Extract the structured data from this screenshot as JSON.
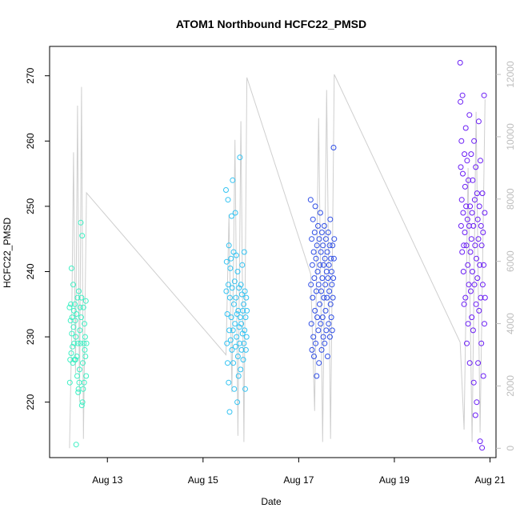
{
  "chart_data": {
    "type": "scatter",
    "title": "ATOM1 Northbound HCFC22_PMSD",
    "xlabel": "Date",
    "ylabel": "HCFC22_PMSD",
    "xlim": [
      "2016-08-11T19:00",
      "2016-08-21T03:00"
    ],
    "ylim": [
      211.5,
      274.5
    ],
    "y2lim": [
      -300,
      12900
    ],
    "x_ticks": [
      {
        "value": "2016-08-13T00:00",
        "label": "Aug 13"
      },
      {
        "value": "2016-08-15T00:00",
        "label": "Aug 15"
      },
      {
        "value": "2016-08-17T00:00",
        "label": "Aug 17"
      },
      {
        "value": "2016-08-19T00:00",
        "label": "Aug 19"
      },
      {
        "value": "2016-08-21T00:00",
        "label": "Aug 21"
      }
    ],
    "y_ticks": [
      {
        "value": 220,
        "label": "220"
      },
      {
        "value": 230,
        "label": "230"
      },
      {
        "value": 240,
        "label": "240"
      },
      {
        "value": 250,
        "label": "250"
      },
      {
        "value": 260,
        "label": "260"
      },
      {
        "value": 270,
        "label": "270"
      }
    ],
    "y2_ticks": [
      {
        "value": 0,
        "label": "0"
      },
      {
        "value": 2000,
        "label": "2000"
      },
      {
        "value": 4000,
        "label": "4000"
      },
      {
        "value": 6000,
        "label": "6000"
      },
      {
        "value": 8000,
        "label": "8000"
      },
      {
        "value": 10000,
        "label": "10000"
      },
      {
        "value": 12000,
        "label": "12000"
      }
    ],
    "grid": false,
    "legend": "none",
    "series": [
      {
        "color": "#3ef0c4",
        "x": [
          "2016-08-12T05:00",
          "2016-08-12T05:10",
          "2016-08-12T05:20",
          "2016-08-12T05:30",
          "2016-08-12T05:40",
          "2016-08-12T05:50",
          "2016-08-12T06:00",
          "2016-08-12T06:10",
          "2016-08-12T06:20",
          "2016-08-12T06:30",
          "2016-08-12T06:40",
          "2016-08-12T06:50",
          "2016-08-12T07:00",
          "2016-08-12T07:10",
          "2016-08-12T07:20",
          "2016-08-12T07:30",
          "2016-08-12T07:40",
          "2016-08-12T07:50",
          "2016-08-12T08:00",
          "2016-08-12T08:10",
          "2016-08-12T08:20",
          "2016-08-12T08:30",
          "2016-08-12T08:40",
          "2016-08-12T08:50",
          "2016-08-12T09:00",
          "2016-08-12T09:10",
          "2016-08-12T09:20",
          "2016-08-12T09:30",
          "2016-08-12T09:40",
          "2016-08-12T09:50",
          "2016-08-12T10:00",
          "2016-08-12T10:10",
          "2016-08-12T10:20",
          "2016-08-12T10:30",
          "2016-08-12T10:40",
          "2016-08-12T10:50",
          "2016-08-12T11:00",
          "2016-08-12T11:10",
          "2016-08-12T11:20",
          "2016-08-12T11:30",
          "2016-08-12T11:40",
          "2016-08-12T11:50",
          "2016-08-12T12:00",
          "2016-08-12T12:10",
          "2016-08-12T12:20",
          "2016-08-12T12:30",
          "2016-08-12T12:40",
          "2016-08-12T12:50",
          "2016-08-12T13:00",
          "2016-08-12T13:10",
          "2016-08-12T13:20",
          "2016-08-12T13:30"
        ],
        "y": [
          234.5,
          223,
          226.5,
          232.5,
          235,
          227.5,
          240.5,
          230.5,
          233,
          228.5,
          226,
          238,
          231.5,
          234,
          229,
          226.5,
          235,
          232.5,
          226.5,
          230,
          213.5,
          233.5,
          227,
          224,
          236,
          229,
          221.5,
          222,
          237,
          223,
          225,
          231,
          234.5,
          229,
          247.5,
          233,
          236,
          219.5,
          245.5,
          220,
          226,
          222,
          234.5,
          229,
          223,
          232,
          228,
          230,
          227,
          235.5,
          224,
          229
        ]
      },
      {
        "color": "#33c3f2",
        "x": [
          "2016-08-15T11:30",
          "2016-08-15T11:40",
          "2016-08-15T11:50",
          "2016-08-15T12:00",
          "2016-08-15T12:10",
          "2016-08-15T12:20",
          "2016-08-15T12:30",
          "2016-08-15T12:40",
          "2016-08-15T12:50",
          "2016-08-15T13:00",
          "2016-08-15T13:10",
          "2016-08-15T13:20",
          "2016-08-15T13:30",
          "2016-08-15T13:40",
          "2016-08-15T13:50",
          "2016-08-15T14:00",
          "2016-08-15T14:10",
          "2016-08-15T14:20",
          "2016-08-15T14:30",
          "2016-08-15T14:40",
          "2016-08-15T14:50",
          "2016-08-15T15:00",
          "2016-08-15T15:10",
          "2016-08-15T15:20",
          "2016-08-15T15:30",
          "2016-08-15T15:40",
          "2016-08-15T15:50",
          "2016-08-15T16:00",
          "2016-08-15T16:10",
          "2016-08-15T16:20",
          "2016-08-15T16:30",
          "2016-08-15T16:40",
          "2016-08-15T16:50",
          "2016-08-15T17:00",
          "2016-08-15T17:10",
          "2016-08-15T17:20",
          "2016-08-15T17:30",
          "2016-08-15T17:40",
          "2016-08-15T17:50",
          "2016-08-15T18:00",
          "2016-08-15T18:10",
          "2016-08-15T18:20",
          "2016-08-15T18:30",
          "2016-08-15T18:40",
          "2016-08-15T18:50",
          "2016-08-15T19:00",
          "2016-08-15T19:10",
          "2016-08-15T19:20",
          "2016-08-15T19:30",
          "2016-08-15T19:40",
          "2016-08-15T19:50",
          "2016-08-15T20:00",
          "2016-08-15T20:10",
          "2016-08-15T20:20",
          "2016-08-15T20:30",
          "2016-08-15T20:40",
          "2016-08-15T20:50",
          "2016-08-15T21:00",
          "2016-08-15T21:10",
          "2016-08-15T21:20",
          "2016-08-15T21:30",
          "2016-08-15T21:40",
          "2016-08-15T21:50",
          "2016-08-15T22:00"
        ],
        "y": [
          252.5,
          237,
          241.5,
          229,
          233.5,
          226,
          251,
          238,
          223,
          244,
          231,
          218.5,
          236,
          240.5,
          229.5,
          242,
          233,
          248.5,
          228,
          237.5,
          254,
          231,
          226,
          243,
          235,
          222,
          238.5,
          232,
          249,
          228.5,
          236,
          242.5,
          230,
          233.5,
          220,
          240,
          227,
          234,
          224,
          237.5,
          231.5,
          229,
          257.5,
          233,
          225,
          238,
          232,
          228,
          236.5,
          241,
          230.5,
          234,
          226.5,
          235,
          229,
          243,
          231,
          237,
          222,
          233,
          228,
          236,
          230,
          234
        ]
      },
      {
        "color": "#2f4ee6",
        "x": [
          "2016-08-17T06:00",
          "2016-08-17T06:10",
          "2016-08-17T06:20",
          "2016-08-17T06:30",
          "2016-08-17T06:40",
          "2016-08-17T06:50",
          "2016-08-17T07:00",
          "2016-08-17T07:10",
          "2016-08-17T07:20",
          "2016-08-17T07:30",
          "2016-08-17T07:40",
          "2016-08-17T07:50",
          "2016-08-17T08:00",
          "2016-08-17T08:10",
          "2016-08-17T08:20",
          "2016-08-17T08:30",
          "2016-08-17T08:40",
          "2016-08-17T08:50",
          "2016-08-17T09:00",
          "2016-08-17T09:10",
          "2016-08-17T09:20",
          "2016-08-17T09:30",
          "2016-08-17T09:40",
          "2016-08-17T09:50",
          "2016-08-17T10:00",
          "2016-08-17T10:10",
          "2016-08-17T10:20",
          "2016-08-17T10:30",
          "2016-08-17T10:40",
          "2016-08-17T10:50",
          "2016-08-17T11:00",
          "2016-08-17T11:10",
          "2016-08-17T11:20",
          "2016-08-17T11:30",
          "2016-08-17T11:40",
          "2016-08-17T11:50",
          "2016-08-17T12:00",
          "2016-08-17T12:10",
          "2016-08-17T12:20",
          "2016-08-17T12:30",
          "2016-08-17T12:40",
          "2016-08-17T12:50",
          "2016-08-17T13:00",
          "2016-08-17T13:10",
          "2016-08-17T13:20",
          "2016-08-17T13:30",
          "2016-08-17T13:40",
          "2016-08-17T13:50",
          "2016-08-17T14:00",
          "2016-08-17T14:10",
          "2016-08-17T14:20",
          "2016-08-17T14:30",
          "2016-08-17T14:40",
          "2016-08-17T14:50",
          "2016-08-17T15:00",
          "2016-08-17T15:10",
          "2016-08-17T15:20",
          "2016-08-17T15:30",
          "2016-08-17T15:40",
          "2016-08-17T15:50",
          "2016-08-17T16:00",
          "2016-08-17T16:10",
          "2016-08-17T16:20",
          "2016-08-17T16:30",
          "2016-08-17T16:40",
          "2016-08-17T16:50",
          "2016-08-17T17:00",
          "2016-08-17T17:10",
          "2016-08-17T17:20",
          "2016-08-17T17:30",
          "2016-08-17T17:40",
          "2016-08-17T17:50"
        ],
        "y": [
          251,
          238,
          232,
          245,
          228,
          241,
          236,
          248,
          230,
          243,
          227,
          239,
          246,
          234,
          250,
          229,
          242,
          237,
          224,
          244,
          233,
          240,
          247,
          231,
          238,
          226,
          245,
          235,
          241,
          249,
          232,
          243,
          237,
          228,
          246,
          239,
          233,
          244,
          230,
          241,
          236,
          247,
          229,
          242,
          238,
          234,
          245,
          231,
          240,
          236,
          243,
          227,
          239,
          246,
          232,
          241,
          237,
          244,
          230,
          248,
          235,
          242,
          233,
          240,
          238,
          231,
          244,
          236,
          239,
          259,
          242,
          245
        ]
      },
      {
        "color": "#6a1df5",
        "x": [
          "2016-08-20T09:00",
          "2016-08-20T09:10",
          "2016-08-20T09:20",
          "2016-08-20T09:30",
          "2016-08-20T09:40",
          "2016-08-20T09:50",
          "2016-08-20T10:00",
          "2016-08-20T10:10",
          "2016-08-20T10:20",
          "2016-08-20T10:30",
          "2016-08-20T10:40",
          "2016-08-20T10:50",
          "2016-08-20T11:00",
          "2016-08-20T11:10",
          "2016-08-20T11:20",
          "2016-08-20T11:30",
          "2016-08-20T11:40",
          "2016-08-20T11:50",
          "2016-08-20T12:00",
          "2016-08-20T12:10",
          "2016-08-20T12:20",
          "2016-08-20T12:30",
          "2016-08-20T12:40",
          "2016-08-20T12:50",
          "2016-08-20T13:00",
          "2016-08-20T13:10",
          "2016-08-20T13:20",
          "2016-08-20T13:30",
          "2016-08-20T13:40",
          "2016-08-20T13:50",
          "2016-08-20T14:00",
          "2016-08-20T14:10",
          "2016-08-20T14:20",
          "2016-08-20T14:30",
          "2016-08-20T14:40",
          "2016-08-20T14:50",
          "2016-08-20T15:00",
          "2016-08-20T15:10",
          "2016-08-20T15:20",
          "2016-08-20T15:30",
          "2016-08-20T15:40",
          "2016-08-20T15:50",
          "2016-08-20T16:00",
          "2016-08-20T16:10",
          "2016-08-20T16:20",
          "2016-08-20T16:30",
          "2016-08-20T16:40",
          "2016-08-20T16:50",
          "2016-08-20T17:00",
          "2016-08-20T17:10",
          "2016-08-20T17:20",
          "2016-08-20T17:30",
          "2016-08-20T17:40",
          "2016-08-20T17:50",
          "2016-08-20T18:00",
          "2016-08-20T18:10",
          "2016-08-20T18:20",
          "2016-08-20T18:30",
          "2016-08-20T18:40",
          "2016-08-20T18:50",
          "2016-08-20T19:00",
          "2016-08-20T19:10",
          "2016-08-20T19:20",
          "2016-08-20T19:30",
          "2016-08-20T19:40",
          "2016-08-20T19:50",
          "2016-08-20T20:00",
          "2016-08-20T20:10",
          "2016-08-20T20:20",
          "2016-08-20T20:30",
          "2016-08-20T20:40",
          "2016-08-20T20:50",
          "2016-08-20T21:00",
          "2016-08-20T21:10",
          "2016-08-20T21:20",
          "2016-08-20T21:30"
        ],
        "y": [
          272,
          266,
          256,
          247,
          260,
          251,
          243,
          267,
          255,
          249,
          240,
          244,
          235,
          258,
          246,
          253,
          236,
          262,
          250,
          244,
          229,
          257,
          248,
          241,
          232,
          254,
          238,
          247,
          264,
          226,
          250,
          243,
          237,
          258,
          245,
          233,
          249,
          240,
          254,
          231,
          247,
          223,
          260,
          238,
          251,
          244,
          218,
          256,
          235,
          242,
          220,
          252,
          239,
          248,
          226,
          245,
          263,
          234,
          250,
          241,
          214,
          257,
          236,
          247,
          229,
          244,
          213,
          252,
          238,
          246,
          224,
          241,
          267,
          232,
          249,
          236
        ]
      }
    ],
    "background_line": {
      "color": "#cfcfcf",
      "x": [
        "2016-08-12T05:00",
        "2016-08-12T06:00",
        "2016-08-12T07:00",
        "2016-08-12T08:00",
        "2016-08-12T09:00",
        "2016-08-12T10:00",
        "2016-08-12T11:00",
        "2016-08-12T12:00",
        "2016-08-12T13:30",
        "2016-08-15T11:30",
        "2016-08-15T13:00",
        "2016-08-15T14:30",
        "2016-08-15T16:00",
        "2016-08-15T17:30",
        "2016-08-15T19:00",
        "2016-08-15T20:30",
        "2016-08-15T22:00",
        "2016-08-17T06:00",
        "2016-08-17T08:00",
        "2016-08-17T10:00",
        "2016-08-17T12:00",
        "2016-08-17T14:00",
        "2016-08-17T16:00",
        "2016-08-17T17:50",
        "2016-08-20T09:00",
        "2016-08-20T11:00",
        "2016-08-20T13:00",
        "2016-08-20T15:00",
        "2016-08-20T17:00",
        "2016-08-20T19:00",
        "2016-08-20T21:30"
      ],
      "y": [
        0,
        3400,
        9500,
        2400,
        11000,
        1500,
        11600,
        300,
        8200,
        3000,
        7500,
        1800,
        9900,
        400,
        10500,
        200,
        11900,
        5600,
        1200,
        10600,
        200,
        11500,
        300,
        12000,
        3400,
        600,
        9000,
        200,
        10800,
        500,
        11200
      ]
    }
  }
}
